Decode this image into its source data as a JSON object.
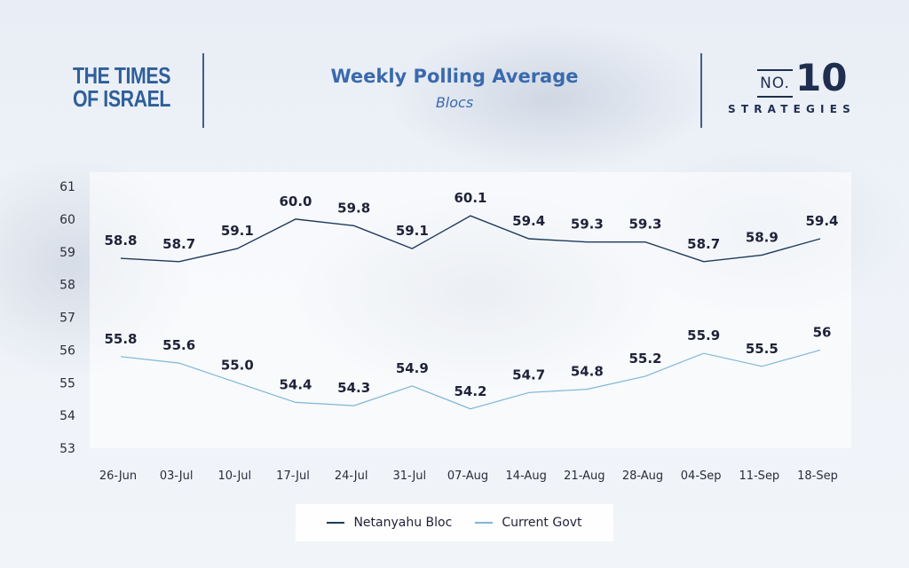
{
  "header": {
    "brand_left_line1": "THE TIMES",
    "brand_left_line2": "OF ISRAEL",
    "brand_right_no": "NO.",
    "brand_right_num": "10",
    "brand_right_word": "STRATEGIES"
  },
  "colors": {
    "netanyahu": "#1d3a5e",
    "govt": "#7fb6d6",
    "label": "#1f2238",
    "axis_text": "#2a2d3a",
    "title": "#3a6aad"
  },
  "chart_data": {
    "type": "line",
    "title": "Weekly Polling Average",
    "subtitle": "Blocs",
    "xlabel": "",
    "ylabel": "",
    "ylim": [
      53,
      61
    ],
    "yticks": [
      53,
      54,
      55,
      56,
      57,
      58,
      59,
      60,
      61
    ],
    "categories": [
      "26-Jun",
      "03-Jul",
      "10-Jul",
      "17-Jul",
      "24-Jul",
      "31-Jul",
      "07-Aug",
      "14-Aug",
      "21-Aug",
      "28-Aug",
      "04-Sep",
      "11-Sep",
      "18-Sep"
    ],
    "grid": false,
    "legend": "bottom-center",
    "series": [
      {
        "name": "Netanyahu Bloc",
        "values": [
          58.8,
          58.7,
          59.1,
          60.0,
          59.8,
          59.1,
          60.1,
          59.4,
          59.3,
          59.3,
          58.7,
          58.9,
          59.4
        ],
        "labels": [
          "58.8",
          "58.7",
          "59.1",
          "60.0",
          "59.8",
          "59.1",
          "60.1",
          "59.4",
          "59.3",
          "59.3",
          "58.7",
          "58.9",
          "59.4"
        ]
      },
      {
        "name": "Current Govt",
        "values": [
          55.8,
          55.6,
          55.0,
          54.4,
          54.3,
          54.9,
          54.2,
          54.7,
          54.8,
          55.2,
          55.9,
          55.5,
          56
        ],
        "labels": [
          "55.8",
          "55.6",
          "55.0",
          "54.4",
          "54.3",
          "54.9",
          "54.2",
          "54.7",
          "54.8",
          "55.2",
          "55.9",
          "55.5",
          "56"
        ]
      }
    ]
  }
}
